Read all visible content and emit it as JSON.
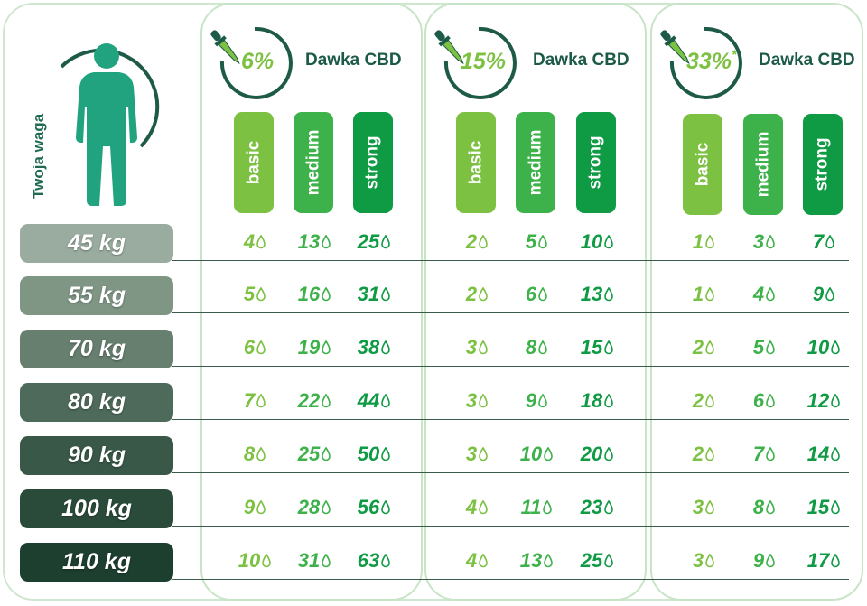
{
  "weight_label": "Twoja waga",
  "dose_label": "Dawka CBD",
  "levels": [
    "basic",
    "medium",
    "strong"
  ],
  "colors": {
    "basic": "#7cc142",
    "medium": "#3db14a",
    "strong": "#0f9a44",
    "dark_green": "#1d5a48",
    "figure": "#22a37f"
  },
  "weights": [
    "45 kg",
    "55 kg",
    "70 kg",
    "80 kg",
    "90 kg",
    "100 kg",
    "110 kg"
  ],
  "panels": [
    {
      "percent": "6%",
      "asterisk": "",
      "values": [
        [
          "4",
          "13",
          "25"
        ],
        [
          "5",
          "16",
          "31"
        ],
        [
          "6",
          "19",
          "38"
        ],
        [
          "7",
          "22",
          "44"
        ],
        [
          "8",
          "25",
          "50"
        ],
        [
          "9",
          "28",
          "56"
        ],
        [
          "10",
          "31",
          "63"
        ]
      ]
    },
    {
      "percent": "15%",
      "asterisk": "",
      "values": [
        [
          "2",
          "5",
          "10"
        ],
        [
          "2",
          "6",
          "13"
        ],
        [
          "3",
          "8",
          "15"
        ],
        [
          "3",
          "9",
          "18"
        ],
        [
          "3",
          "10",
          "20"
        ],
        [
          "4",
          "11",
          "23"
        ],
        [
          "4",
          "13",
          "25"
        ]
      ]
    },
    {
      "percent": "33%",
      "asterisk": "*",
      "values": [
        [
          "1",
          "3",
          "7"
        ],
        [
          "1",
          "4",
          "9"
        ],
        [
          "2",
          "5",
          "10"
        ],
        [
          "2",
          "6",
          "12"
        ],
        [
          "2",
          "7",
          "14"
        ],
        [
          "3",
          "8",
          "15"
        ],
        [
          "3",
          "9",
          "17"
        ]
      ]
    }
  ]
}
